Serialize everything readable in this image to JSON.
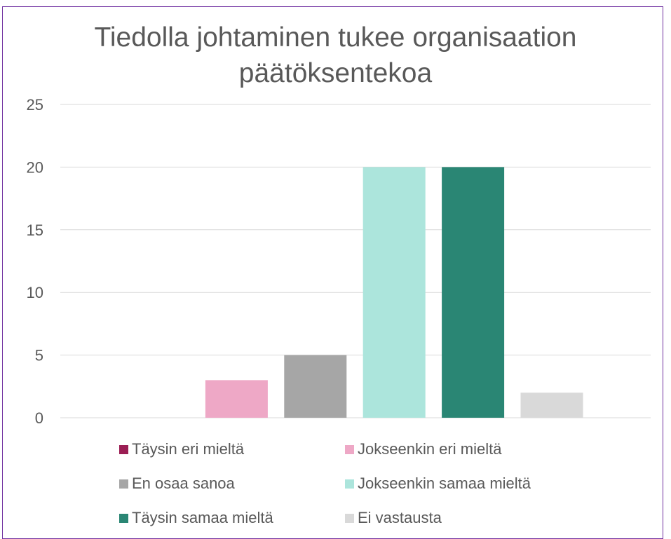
{
  "chart_data": {
    "type": "bar",
    "title": "Tiedolla johtaminen tukee organisaation päätöksentekoa",
    "categories": [
      "Täysin eri mieltä",
      "Jokseenkin eri mieltä",
      "En osaa sanoa",
      "Jokseenkin samaa mieltä",
      "Täysin samaa mieltä",
      "Ei vastausta"
    ],
    "values": [
      0,
      3,
      5,
      20,
      20,
      2
    ],
    "colors": [
      "#9b1e54",
      "#eea8c6",
      "#a6a6a6",
      "#ace5dc",
      "#2a8674",
      "#d9d9d9"
    ],
    "ylim": [
      0,
      25
    ],
    "yticks": [
      "0",
      "5",
      "10",
      "15",
      "20",
      "25"
    ],
    "grid": true,
    "legend_position": "bottom"
  }
}
